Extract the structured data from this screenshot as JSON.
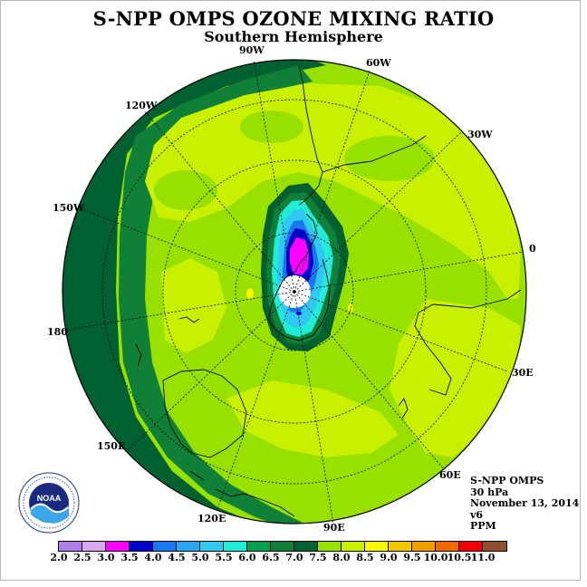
{
  "title": "S-NPP OMPS OZONE MIXING RATIO",
  "subtitle": "Southern Hemisphere",
  "logo_text": "NOAA",
  "logo_ring_text": "NATIONAL OCEANIC AND ATMOSPHERIC ADMINISTRATION · U.S. DEPARTMENT OF COMMERCE",
  "longitude_labels": {
    "w90": "90W",
    "w60": "60W",
    "w120": "120W",
    "w30": "30W",
    "w150": "150W",
    "zero": "0",
    "d180": "180",
    "e30": "30E",
    "e150": "150E",
    "e60": "60E",
    "e120": "120E",
    "e90": "90E"
  },
  "info": {
    "instrument": "S-NPP OMPS",
    "level": "30 hPa",
    "date": "November 13, 2014",
    "version": "v6",
    "units": "PPM"
  },
  "colorbar": {
    "ticks": [
      "2.0",
      "2.5",
      "3.0",
      "3.5",
      "4.0",
      "4.5",
      "5.0",
      "5.5",
      "6.0",
      "6.5",
      "7.0",
      "7.5",
      "8.0",
      "8.5",
      "9.0",
      "9.5",
      "10.0",
      "10.5",
      "11.0"
    ],
    "colors": [
      "#b07ee8",
      "#d8a8f0",
      "#ff00ff",
      "#0000cc",
      "#1878f0",
      "#28a8f0",
      "#30c8f0",
      "#20ecd8",
      "#00a050",
      "#108038",
      "#006030",
      "#98e000",
      "#c8f000",
      "#f8f800",
      "#f0c800",
      "#f0a000",
      "#f06800",
      "#f00000",
      "#905030"
    ]
  },
  "map_colors": {
    "dark_green": "#006030",
    "green": "#108038",
    "mid_green": "#98e000",
    "yellow_green": "#c8f000",
    "yellow": "#f8f800",
    "cyan": "#20ecd8",
    "sky": "#30c8f0",
    "blue": "#1878f0",
    "deep_blue": "#0000cc",
    "magenta": "#ff00ff"
  }
}
